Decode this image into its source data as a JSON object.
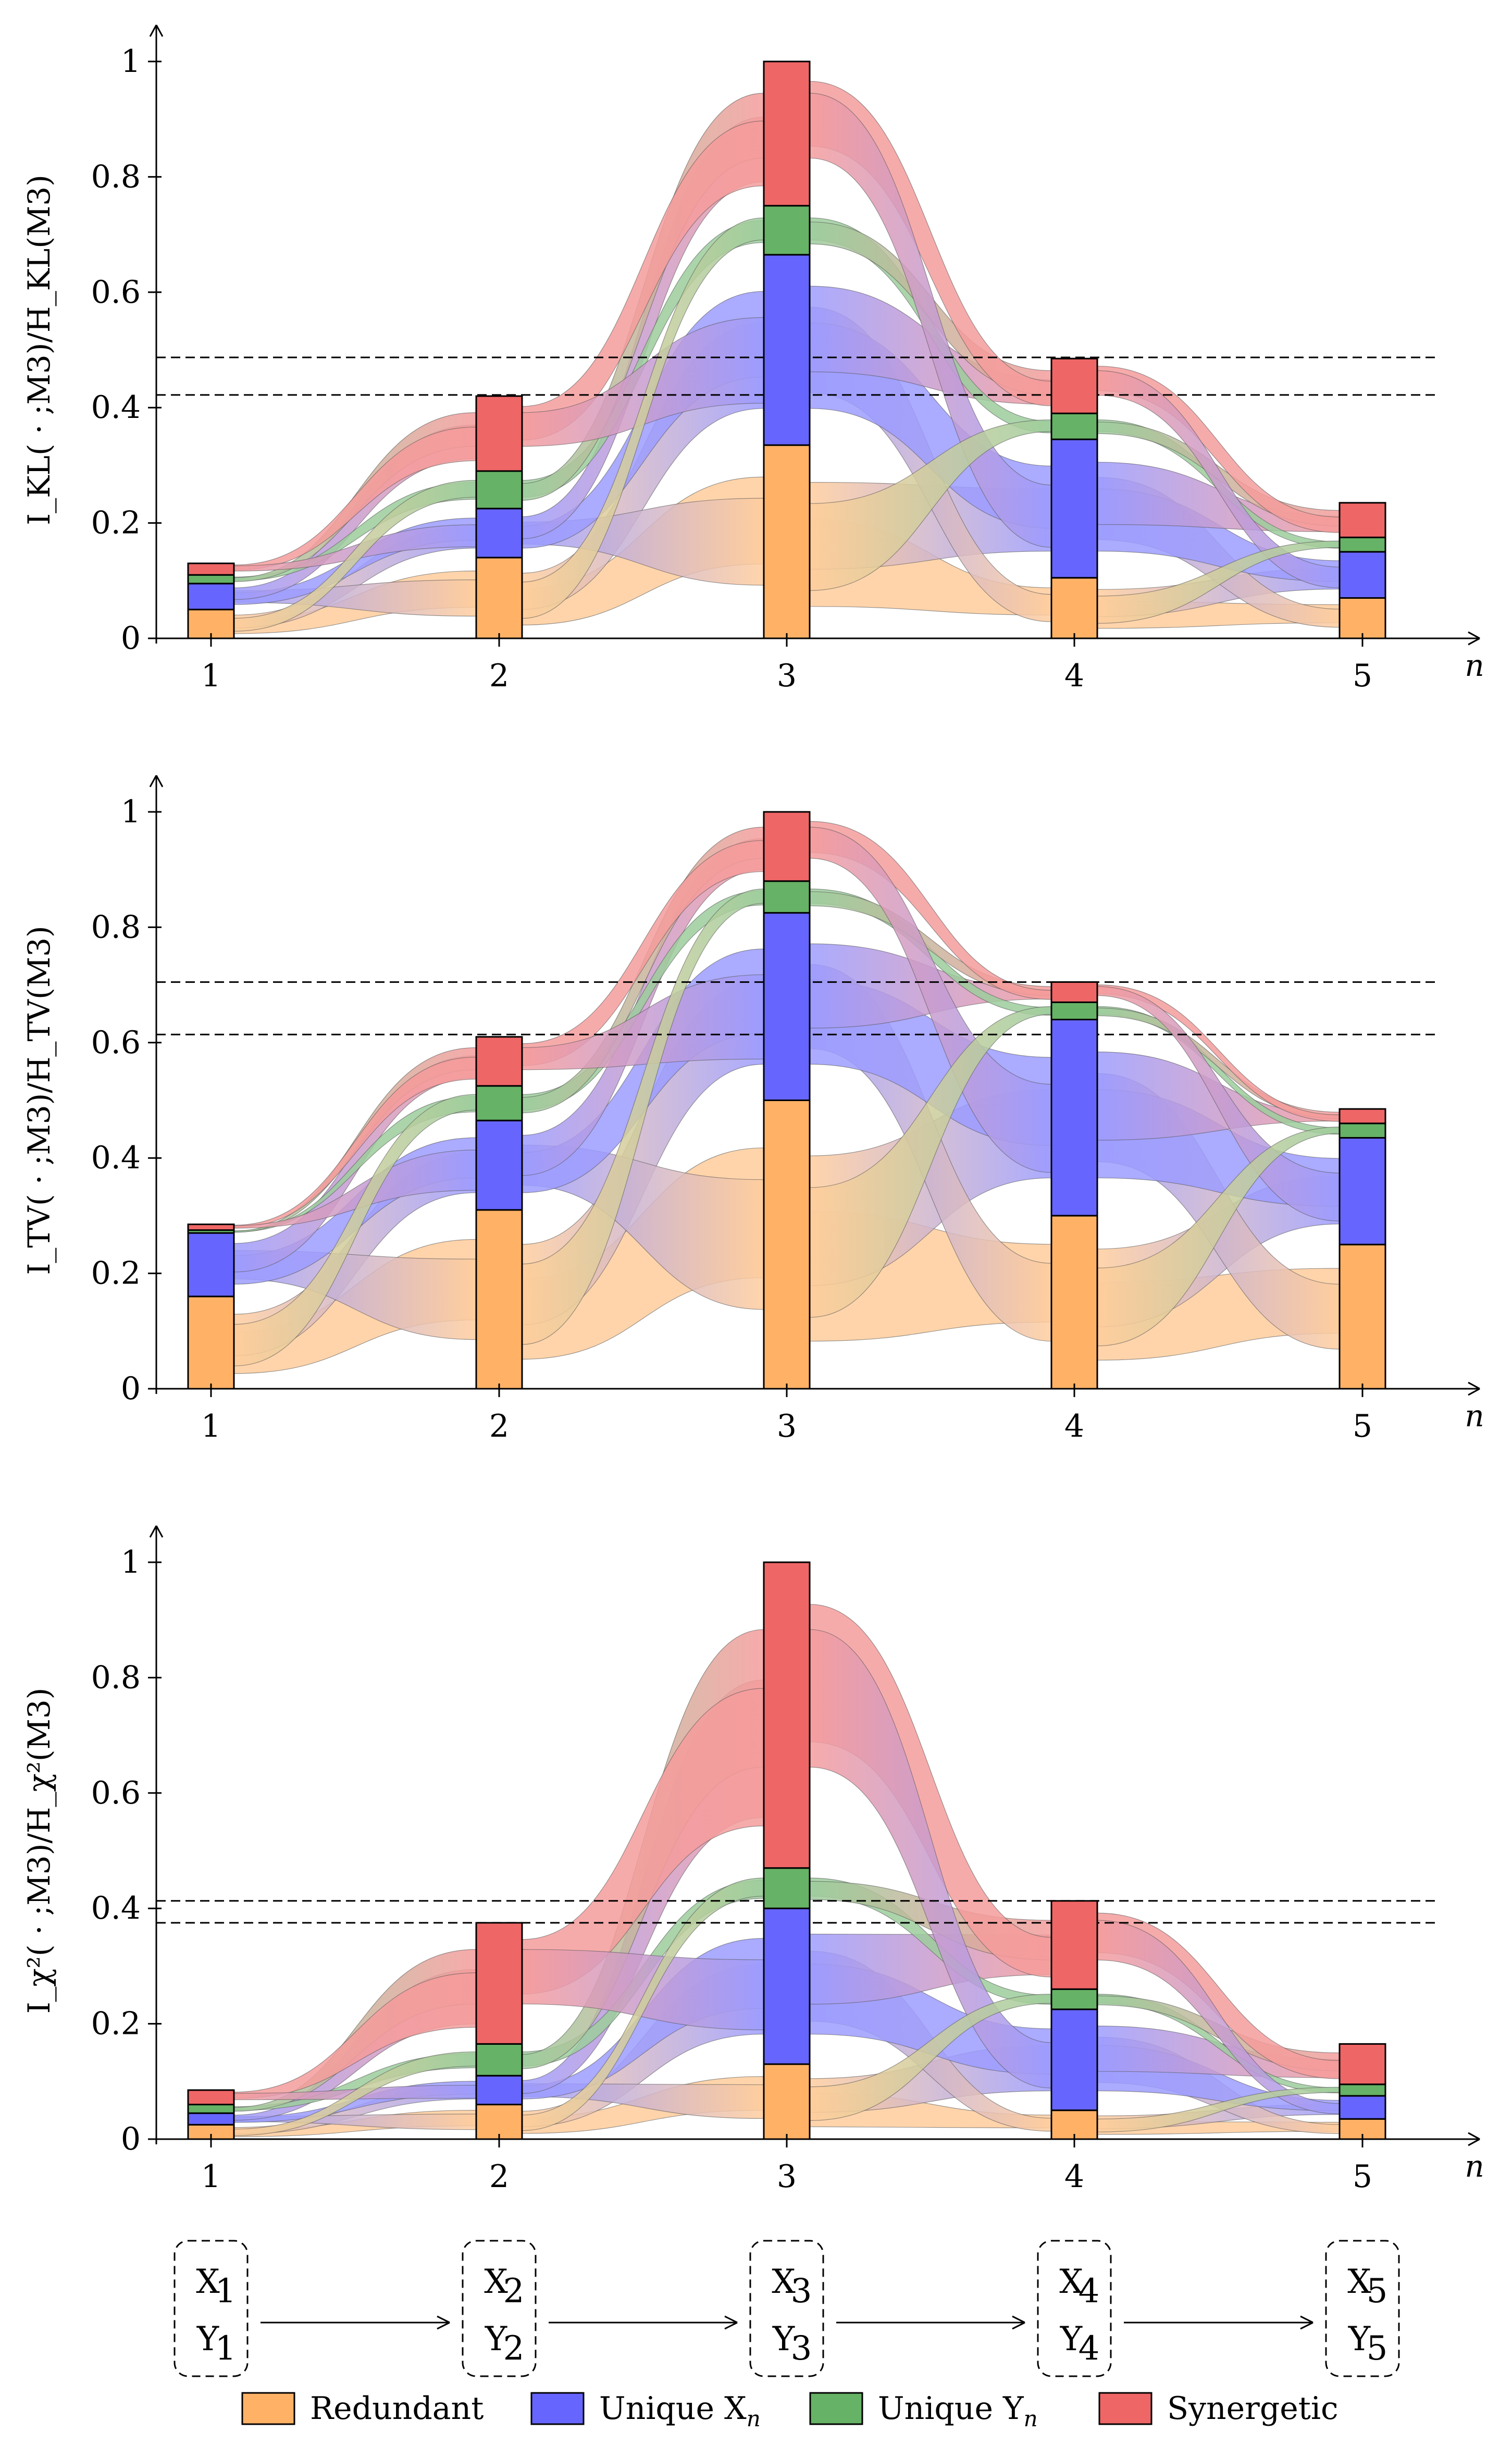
{
  "colors": {
    "redundant": "#ffb266",
    "unique_x": "#6666ff",
    "unique_y": "#66b266",
    "synergetic": "#ef6666"
  },
  "legend": [
    {
      "key": "redundant",
      "label": "Redundant"
    },
    {
      "key": "unique_x",
      "label": "Unique X",
      "sub": "n"
    },
    {
      "key": "unique_y",
      "label": "Unique Y",
      "sub": "n"
    },
    {
      "key": "synergetic",
      "label": "Synergetic"
    }
  ],
  "markov_chain": {
    "nodes": [
      {
        "x": "X",
        "y": "Y",
        "index": "1"
      },
      {
        "x": "X",
        "y": "Y",
        "index": "2"
      },
      {
        "x": "X",
        "y": "Y",
        "index": "3"
      },
      {
        "x": "X",
        "y": "Y",
        "index": "4"
      },
      {
        "x": "X",
        "y": "Y",
        "index": "5"
      }
    ]
  },
  "chart_data": [
    {
      "type": "bar",
      "stacked": true,
      "ylabel": "I_KL( · ;M3)/H_KL(M3)",
      "xlabel": "n",
      "categories": [
        "1",
        "2",
        "3",
        "4",
        "5"
      ],
      "yticks": [
        "0",
        "0.2",
        "0.4",
        "0.6",
        "0.8",
        "1"
      ],
      "ylim": [
        0,
        1
      ],
      "reference_lines": [
        0.487,
        0.422
      ],
      "series": [
        {
          "name": "Redundant",
          "values": [
            0.05,
            0.14,
            0.335,
            0.105,
            0.07
          ]
        },
        {
          "name": "Unique X_n",
          "values": [
            0.045,
            0.085,
            0.33,
            0.24,
            0.08
          ]
        },
        {
          "name": "Unique Y_n",
          "values": [
            0.015,
            0.065,
            0.085,
            0.045,
            0.025
          ]
        },
        {
          "name": "Synergetic",
          "values": [
            0.02,
            0.13,
            0.25,
            0.095,
            0.06
          ]
        }
      ]
    },
    {
      "type": "bar",
      "stacked": true,
      "ylabel": "I_TV( · ;M3)/H_TV(M3)",
      "xlabel": "n",
      "categories": [
        "1",
        "2",
        "3",
        "4",
        "5"
      ],
      "yticks": [
        "0",
        "0.2",
        "0.4",
        "0.6",
        "0.8",
        "1"
      ],
      "ylim": [
        0,
        1
      ],
      "reference_lines": [
        0.705,
        0.614
      ],
      "series": [
        {
          "name": "Redundant",
          "values": [
            0.16,
            0.31,
            0.5,
            0.3,
            0.25
          ]
        },
        {
          "name": "Unique X_n",
          "values": [
            0.11,
            0.155,
            0.325,
            0.34,
            0.185
          ]
        },
        {
          "name": "Unique Y_n",
          "values": [
            0.005,
            0.06,
            0.055,
            0.03,
            0.025
          ]
        },
        {
          "name": "Synergetic",
          "values": [
            0.01,
            0.085,
            0.12,
            0.035,
            0.025
          ]
        }
      ]
    },
    {
      "type": "bar",
      "stacked": true,
      "ylabel": "I_χ²( · ;M3)/H_χ²(M3)",
      "xlabel": "n",
      "categories": [
        "1",
        "2",
        "3",
        "4",
        "5"
      ],
      "yticks": [
        "0",
        "0.2",
        "0.4",
        "0.6",
        "0.8",
        "1"
      ],
      "ylim": [
        0,
        1
      ],
      "reference_lines": [
        0.413,
        0.375
      ],
      "series": [
        {
          "name": "Redundant",
          "values": [
            0.025,
            0.06,
            0.13,
            0.05,
            0.035
          ]
        },
        {
          "name": "Unique X_n",
          "values": [
            0.02,
            0.05,
            0.27,
            0.175,
            0.04
          ]
        },
        {
          "name": "Unique Y_n",
          "values": [
            0.015,
            0.055,
            0.07,
            0.035,
            0.02
          ]
        },
        {
          "name": "Synergetic",
          "values": [
            0.025,
            0.21,
            0.53,
            0.153,
            0.07
          ]
        }
      ]
    }
  ]
}
